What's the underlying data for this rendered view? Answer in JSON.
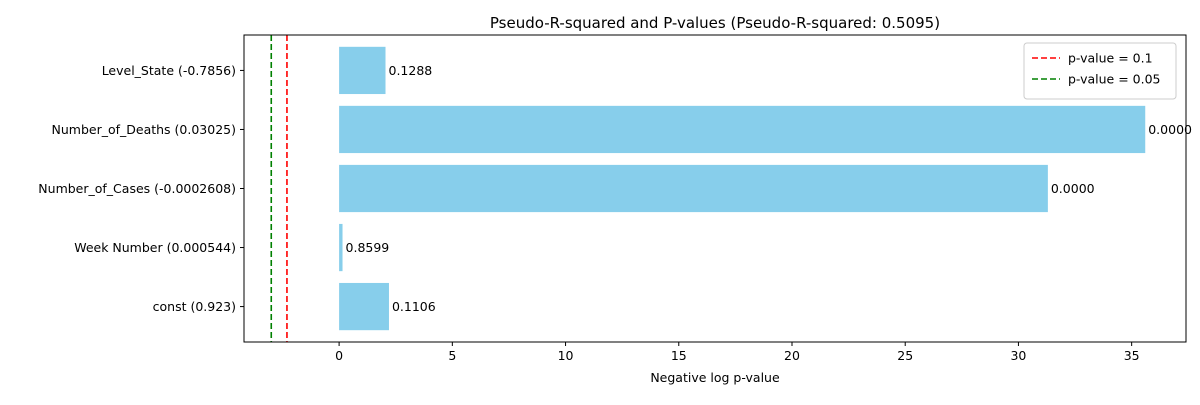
{
  "chart_data": {
    "type": "bar",
    "orientation": "horizontal",
    "title": "Pseudo-R-squared and P-values (Pseudo-R-squared: 0.5095)",
    "xlabel": "Negative log p-value",
    "ylabel": "",
    "categories": [
      "Level_State (-0.7856)",
      "Number_of_Deaths (0.03025)",
      "Number_of_Cases (-0.0002608)",
      "Week Number (0.000544)",
      "const (0.923)"
    ],
    "values": [
      2.049,
      35.6,
      31.3,
      0.151,
      2.202
    ],
    "value_labels": [
      "0.1288",
      "0.0000",
      "0.0000",
      "0.8599",
      "0.1106"
    ],
    "bar_color": "#87ceeb",
    "xlim": [
      -4.2,
      37.4
    ],
    "xticks": [
      0,
      5,
      10,
      15,
      20,
      25,
      30,
      35
    ],
    "reference_lines": [
      {
        "label": "p-value = 0.1",
        "x": -2.303,
        "color": "#ff0000",
        "style": "dashed"
      },
      {
        "label": "p-value = 0.05",
        "x": -2.996,
        "color": "#008000",
        "style": "dashed"
      }
    ],
    "legend_position": "top-right",
    "grid": false
  }
}
